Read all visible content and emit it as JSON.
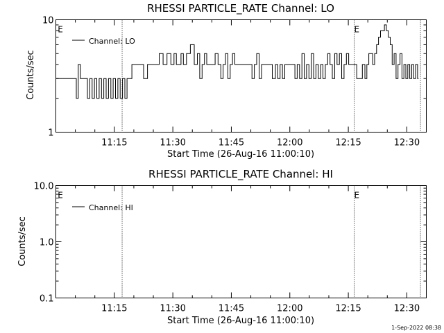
{
  "footer_timestamp": "1-Sep-2022 08:38",
  "chart_data": [
    {
      "type": "line",
      "title": "RHESSI PARTICLE_RATE Channel: LO",
      "xlabel": "Start Time (26-Aug-16 11:00:10)",
      "ylabel": "Counts/sec",
      "yscale": "log",
      "xlim_minutes": [
        0,
        95
      ],
      "ylim": [
        1,
        10
      ],
      "x_ticks": [
        {
          "minute": 15,
          "label": "11:15"
        },
        {
          "minute": 30,
          "label": "11:30"
        },
        {
          "minute": 45,
          "label": "11:45"
        },
        {
          "minute": 60,
          "label": "12:00"
        },
        {
          "minute": 75,
          "label": "12:15"
        },
        {
          "minute": 90,
          "label": "12:30"
        }
      ],
      "y_ticks": [
        {
          "value": 1,
          "label": "1"
        },
        {
          "value": 10,
          "label": "10"
        }
      ],
      "event_lines_minutes": [
        17,
        76.5,
        93.5
      ],
      "event_markers": [
        {
          "minute": 0.5,
          "label": "E"
        },
        {
          "minute": 76.5,
          "label": "E"
        }
      ],
      "legend": {
        "position": "top-left",
        "entries": [
          "Channel: LO"
        ]
      },
      "series": [
        {
          "name": "Channel: LO",
          "x_minutes": [
            0,
            5,
            5.5,
            6,
            6.6,
            7.2,
            7.8,
            8.4,
            9,
            9.6,
            10.2,
            10.8,
            11.4,
            12,
            12.6,
            13.2,
            13.8,
            14.4,
            15,
            15.6,
            16.2,
            16.8,
            17.4,
            18,
            18.5,
            19,
            20,
            22,
            23,
            24,
            26,
            27,
            28,
            29,
            30,
            30.6,
            31.2,
            31.8,
            32.4,
            33,
            34,
            35,
            36,
            36.6,
            37.2,
            37.8,
            38.4,
            39,
            39.8,
            40.5,
            41.2,
            42,
            42.6,
            43.2,
            43.8,
            44.4,
            45,
            45.6,
            46.2,
            47,
            50,
            50.6,
            51.2,
            51.8,
            52.5,
            53,
            54,
            55,
            56,
            56.6,
            57.2,
            57.8,
            58.4,
            59,
            60,
            61,
            61.6,
            62.2,
            62.8,
            63.4,
            64,
            64.6,
            65.2,
            65.8,
            66.4,
            67,
            67.6,
            68.2,
            68.8,
            69.4,
            70,
            70.6,
            71.2,
            71.8,
            72.4,
            73,
            73.6,
            74.2,
            74.8,
            75.4,
            76,
            76.8,
            77.5,
            78.2,
            79,
            79.5,
            80,
            80.5,
            81,
            81.5,
            82,
            82.5,
            83,
            83.5,
            84,
            84.5,
            85,
            85.5,
            86,
            86.5,
            87,
            87.5,
            88,
            88.5,
            89,
            89.5,
            90,
            90.5,
            91,
            91.5,
            92,
            92.5,
            93
          ],
          "values": [
            3,
            3,
            2,
            4,
            3,
            3,
            3,
            2,
            3,
            2,
            3,
            2,
            3,
            2,
            3,
            2,
            3,
            2,
            3,
            2,
            3,
            2,
            3,
            2,
            3,
            3,
            4,
            4,
            3,
            4,
            4,
            5,
            4,
            5,
            4,
            5,
            4,
            4,
            5,
            4,
            5,
            6,
            4,
            5,
            3,
            4,
            5,
            4,
            4,
            4,
            5,
            4,
            3,
            4,
            5,
            3,
            4,
            5,
            4,
            4,
            4,
            3,
            4,
            5,
            3,
            4,
            4,
            4,
            3,
            4,
            3,
            4,
            3,
            4,
            4,
            4,
            3,
            4,
            3,
            5,
            3,
            4,
            3,
            5,
            3,
            4,
            3,
            4,
            3,
            4,
            5,
            4,
            3,
            5,
            4,
            5,
            3,
            4,
            5,
            4,
            4,
            4,
            3,
            3,
            4,
            3,
            4,
            5,
            5,
            4,
            5,
            6,
            7,
            8,
            8,
            9,
            8,
            7,
            6,
            4,
            5,
            3,
            4,
            5,
            3,
            4,
            3,
            4,
            3,
            4,
            3,
            4,
            3
          ]
        }
      ]
    },
    {
      "type": "line",
      "title": "RHESSI PARTICLE_RATE Channel: HI",
      "xlabel": "Start Time (26-Aug-16 11:00:10)",
      "ylabel": "Counts/sec",
      "yscale": "log",
      "xlim_minutes": [
        0,
        95
      ],
      "ylim": [
        0.1,
        10
      ],
      "x_ticks": [
        {
          "minute": 15,
          "label": "11:15"
        },
        {
          "minute": 30,
          "label": "11:30"
        },
        {
          "minute": 45,
          "label": "11:45"
        },
        {
          "minute": 60,
          "label": "12:00"
        },
        {
          "minute": 75,
          "label": "12:15"
        },
        {
          "minute": 90,
          "label": "12:30"
        }
      ],
      "y_ticks": [
        {
          "value": 0.1,
          "label": "0.1"
        },
        {
          "value": 1,
          "label": "1.0"
        },
        {
          "value": 10,
          "label": "10.0"
        }
      ],
      "event_lines_minutes": [
        17,
        76.5,
        93.5
      ],
      "event_markers": [
        {
          "minute": 0.5,
          "label": "E"
        },
        {
          "minute": 76.5,
          "label": "E"
        }
      ],
      "legend": {
        "position": "top-left",
        "entries": [
          "Channel: HI"
        ]
      },
      "series": [
        {
          "name": "Channel: HI",
          "x_minutes": [],
          "values": []
        }
      ]
    }
  ]
}
